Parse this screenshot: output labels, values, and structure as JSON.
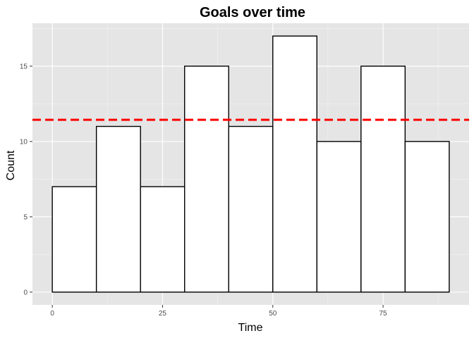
{
  "chart_data": {
    "type": "bar",
    "title": "Goals over time",
    "xlabel": "Time",
    "ylabel": "Count",
    "bins": [
      {
        "x0": 0,
        "x1": 10,
        "count": 7
      },
      {
        "x0": 10,
        "x1": 20,
        "count": 11
      },
      {
        "x0": 20,
        "x1": 30,
        "count": 7
      },
      {
        "x0": 30,
        "x1": 40,
        "count": 15
      },
      {
        "x0": 40,
        "x1": 50,
        "count": 11
      },
      {
        "x0": 50,
        "x1": 60,
        "count": 17
      },
      {
        "x0": 60,
        "x1": 70,
        "count": 10
      },
      {
        "x0": 70,
        "x1": 80,
        "count": 15
      },
      {
        "x0": 80,
        "x1": 90,
        "count": 10
      }
    ],
    "reference_line": {
      "y": 11.44,
      "style": "dashed",
      "color": "#ff0000"
    },
    "xlim": [
      -4.5,
      94.5
    ],
    "ylim": [
      -0.85,
      17.85
    ],
    "xticks": [
      0,
      25,
      50,
      75
    ],
    "xtick_labels": [
      "0",
      "25",
      "50",
      "75"
    ],
    "yticks": [
      0,
      5,
      10,
      15
    ],
    "ytick_labels": [
      "0",
      "5",
      "10",
      "15"
    ],
    "grid": true,
    "bar_fill": "#ffffff",
    "bar_stroke": "#000000",
    "panel_background": "#e5e5e5"
  }
}
